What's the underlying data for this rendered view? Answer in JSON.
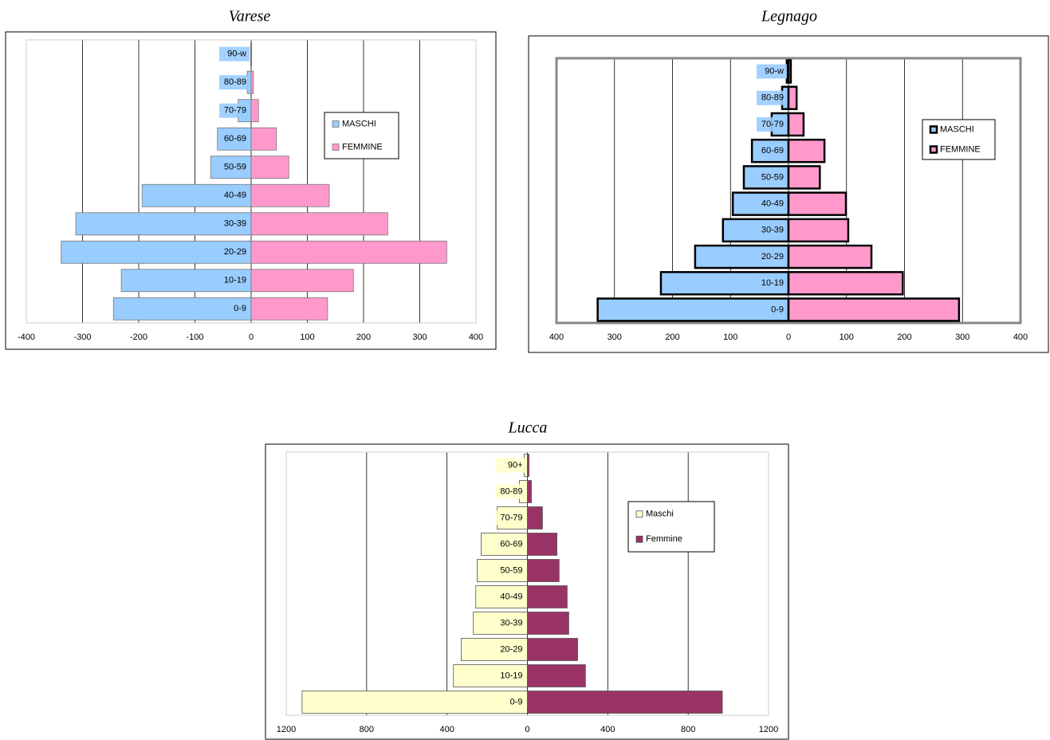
{
  "chart_data": [
    {
      "type": "pyramid",
      "title": "Varese",
      "categories": [
        "0-9",
        "10-19",
        "20-29",
        "30-39",
        "40-49",
        "50-59",
        "60-69",
        "70-79",
        "80-89",
        "90-w"
      ],
      "series": [
        {
          "name": "MASCHI",
          "color": "#99ccff",
          "values": [
            -245,
            -231,
            -338,
            -312,
            -194,
            -72,
            -60,
            -23,
            -7,
            -1
          ]
        },
        {
          "name": "FEMMINE",
          "color": "#ff99cc",
          "values": [
            136,
            182,
            348,
            243,
            139,
            67,
            45,
            13,
            4,
            1
          ]
        }
      ],
      "xlim": [
        -400,
        400
      ],
      "xticks": [
        -400,
        -300,
        -200,
        -100,
        0,
        100,
        200,
        300,
        400
      ],
      "grid": true,
      "legend": "right"
    },
    {
      "type": "pyramid",
      "title": "Legnago",
      "categories": [
        "0-9",
        "10-19",
        "20-29",
        "30-39",
        "40-49",
        "50-59",
        "60-69",
        "70-79",
        "80-89",
        "90-w"
      ],
      "series": [
        {
          "name": "MASCHI",
          "color": "#99ccff",
          "values": [
            -329,
            -220,
            -161,
            -113,
            -96,
            -77,
            -63,
            -29,
            -11,
            -3
          ]
        },
        {
          "name": "FEMMINE",
          "color": "#ff99cc",
          "values": [
            294,
            197,
            143,
            103,
            99,
            54,
            62,
            26,
            14,
            4
          ]
        }
      ],
      "xlim": [
        -400,
        400
      ],
      "xticks": [
        {
          "value": -400,
          "label": "400"
        },
        {
          "value": -300,
          "label": "300"
        },
        {
          "value": -200,
          "label": "200"
        },
        {
          "value": -100,
          "label": "100"
        },
        0,
        100,
        200,
        300,
        400
      ],
      "grid": true,
      "legend": "right"
    },
    {
      "type": "pyramid",
      "title": "Lucca",
      "categories": [
        "0-9",
        "10-19",
        "20-29",
        "30-39",
        "40-49",
        "50-59",
        "60-69",
        "70-79",
        "80-89",
        "90+"
      ],
      "series": [
        {
          "name": "Maschi",
          "color": "#ffffcc",
          "values": [
            -1121,
            -368,
            -329,
            -269,
            -257,
            -250,
            -230,
            -150,
            -40,
            -16
          ]
        },
        {
          "name": "Femmine",
          "color": "#993366",
          "values": [
            970,
            289,
            250,
            206,
            198,
            158,
            147,
            75,
            20,
            8
          ]
        }
      ],
      "xlim": [
        -1200,
        1200
      ],
      "xticks": [
        {
          "value": -1200,
          "label": "1200"
        },
        {
          "value": -800,
          "label": "800"
        },
        {
          "value": -400,
          "label": "400"
        },
        0,
        400,
        800,
        1200
      ],
      "negative_tick_label_color": "#ff0000",
      "grid": true,
      "legend": "right"
    }
  ]
}
